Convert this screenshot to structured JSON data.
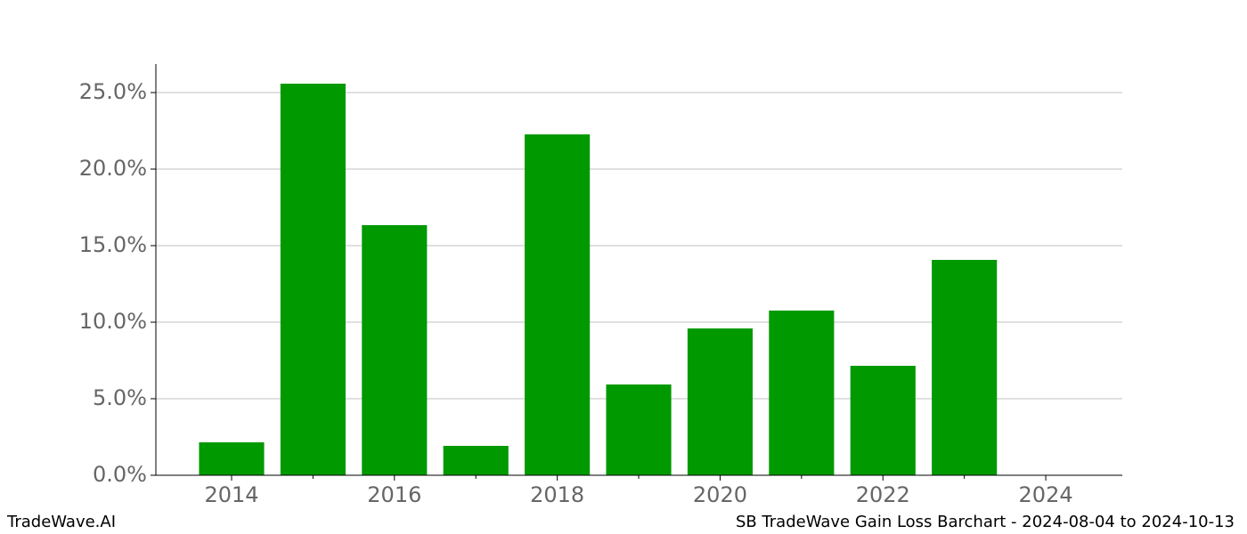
{
  "chart_data": {
    "type": "bar",
    "x": [
      2014,
      2015,
      2016,
      2017,
      2018,
      2019,
      2020,
      2021,
      2022,
      2023
    ],
    "values": [
      2.15,
      25.58,
      16.34,
      1.92,
      22.27,
      5.93,
      9.59,
      10.76,
      7.15,
      14.07
    ],
    "color": "#009900",
    "xlim": [
      2013.07,
      2024.94
    ],
    "xticks": [
      2014,
      2016,
      2018,
      2020,
      2022,
      2024
    ],
    "xminorticks": [
      2015,
      2017,
      2019,
      2021,
      2023
    ],
    "ylim": [
      0,
      26.86
    ],
    "yticks": [
      {
        "value": 0,
        "label": "0.0%"
      },
      {
        "value": 5,
        "label": "5.0%"
      },
      {
        "value": 10,
        "label": "10.0%"
      },
      {
        "value": 15,
        "label": "15.0%"
      },
      {
        "value": 20,
        "label": "20.0%"
      },
      {
        "value": 25,
        "label": "25.0%"
      }
    ],
    "grid": true
  },
  "footer": {
    "left": "TradeWave.AI",
    "right": "SB TradeWave Gain Loss Barchart - 2024-08-04 to 2024-10-13"
  }
}
